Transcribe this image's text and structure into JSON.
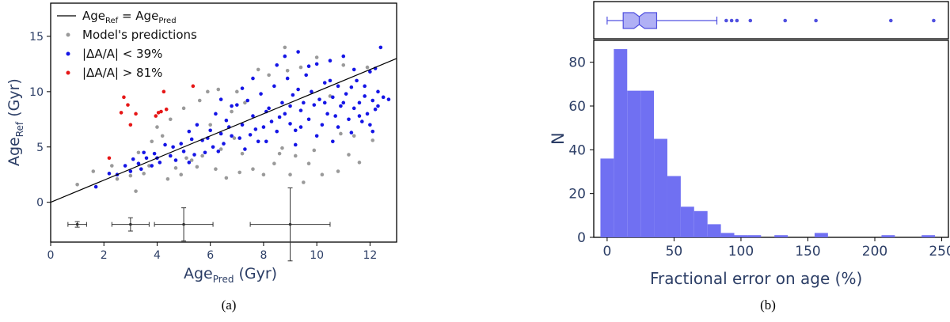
{
  "chart_data": [
    {
      "type": "scatter",
      "caption": "(a)",
      "xlabel_main": "Age",
      "xlabel_sub": "Pred",
      "xlabel_unit": " (Gyr)",
      "ylabel_main": "Age",
      "ylabel_sub": "Ref",
      "ylabel_unit": " (Gyr)",
      "xlim": [
        0,
        13
      ],
      "ylim": [
        -3.6,
        18
      ],
      "xticks": [
        0,
        2,
        4,
        6,
        8,
        10,
        12
      ],
      "yticks": [
        0,
        5,
        10,
        15
      ],
      "legend": {
        "placement": "top-left",
        "line_main": "Age",
        "line_sub1": "Ref",
        "line_eq": " = Age",
        "line_sub2": "Pred",
        "entries": [
          "Model's predictions",
          "|ΔA/A| < 39%",
          "|ΔA/A| > 81%"
        ]
      },
      "colors": {
        "line": "#000000",
        "gray": "#9a9a9a",
        "blue": "#1515e6",
        "red": "#e61717",
        "errorbar": "#333333"
      },
      "line": {
        "x": [
          0,
          13
        ],
        "y": [
          0,
          13
        ]
      },
      "series": [
        {
          "name": "|ΔA/A| > 81%",
          "color": "red",
          "points": [
            [
              2.2,
              4.0
            ],
            [
              2.65,
              8.1
            ],
            [
              2.75,
              9.5
            ],
            [
              2.9,
              8.8
            ],
            [
              3.0,
              7.0
            ],
            [
              3.2,
              8.0
            ],
            [
              3.95,
              7.8
            ],
            [
              4.05,
              8.1
            ],
            [
              4.15,
              8.2
            ],
            [
              4.25,
              10.0
            ],
            [
              4.35,
              8.4
            ],
            [
              5.35,
              10.5
            ]
          ]
        }
      ],
      "gray_points": [
        [
          1.0,
          1.6
        ],
        [
          1.6,
          2.8
        ],
        [
          2.3,
          3.3
        ],
        [
          2.5,
          2.1
        ],
        [
          3.2,
          1.0
        ],
        [
          3.3,
          4.5
        ],
        [
          3.5,
          2.6
        ],
        [
          3.7,
          3.3
        ],
        [
          3.8,
          5.5
        ],
        [
          4.0,
          6.8
        ],
        [
          4.2,
          6.0
        ],
        [
          4.4,
          2.1
        ],
        [
          4.7,
          3.1
        ],
        [
          4.9,
          2.5
        ],
        [
          5.0,
          8.5
        ],
        [
          5.1,
          4.0
        ],
        [
          5.3,
          3.8
        ],
        [
          5.6,
          9.2
        ],
        [
          5.7,
          4.2
        ],
        [
          5.9,
          10.0
        ],
        [
          6.0,
          7.0
        ],
        [
          6.2,
          3.0
        ],
        [
          6.4,
          4.8
        ],
        [
          6.6,
          2.2
        ],
        [
          6.8,
          8.2
        ],
        [
          7.0,
          10.0
        ],
        [
          7.2,
          4.4
        ],
        [
          7.3,
          9.0
        ],
        [
          7.6,
          3.0
        ],
        [
          7.8,
          12.0
        ],
        [
          8.0,
          2.5
        ],
        [
          8.2,
          11.5
        ],
        [
          8.4,
          3.5
        ],
        [
          8.6,
          4.4
        ],
        [
          8.8,
          14.0
        ],
        [
          9.0,
          2.5
        ],
        [
          9.2,
          4.2
        ],
        [
          9.4,
          12.2
        ],
        [
          9.5,
          1.8
        ],
        [
          9.7,
          3.5
        ],
        [
          10.0,
          13.1
        ],
        [
          10.2,
          2.5
        ],
        [
          10.5,
          9.6
        ],
        [
          10.8,
          2.8
        ],
        [
          11.0,
          12.4
        ],
        [
          11.2,
          4.3
        ],
        [
          11.4,
          6.0
        ],
        [
          11.6,
          3.6
        ],
        [
          11.9,
          12.2
        ],
        [
          12.1,
          5.6
        ],
        [
          5.5,
          3.2
        ],
        [
          6.9,
          5.8
        ],
        [
          8.7,
          4.9
        ],
        [
          9.9,
          4.7
        ],
        [
          10.9,
          6.2
        ],
        [
          7.1,
          2.7
        ],
        [
          3.0,
          2.4
        ],
        [
          4.5,
          7.5
        ],
        [
          6.3,
          10.2
        ],
        [
          8.9,
          11.9
        ]
      ],
      "blue_points": [
        [
          1.7,
          1.4
        ],
        [
          2.2,
          2.6
        ],
        [
          2.5,
          2.5
        ],
        [
          2.8,
          3.3
        ],
        [
          3.0,
          2.8
        ],
        [
          3.3,
          3.5
        ],
        [
          3.4,
          3.0
        ],
        [
          3.6,
          4.0
        ],
        [
          3.8,
          3.3
        ],
        [
          3.9,
          4.4
        ],
        [
          4.1,
          3.6
        ],
        [
          4.3,
          5.2
        ],
        [
          4.5,
          4.2
        ],
        [
          4.7,
          3.8
        ],
        [
          4.9,
          5.3
        ],
        [
          5.0,
          4.6
        ],
        [
          5.2,
          6.4
        ],
        [
          5.4,
          4.3
        ],
        [
          5.5,
          7.0
        ],
        [
          5.7,
          5.6
        ],
        [
          5.8,
          4.5
        ],
        [
          6.0,
          6.5
        ],
        [
          6.1,
          5.0
        ],
        [
          6.2,
          8.0
        ],
        [
          6.4,
          6.2
        ],
        [
          6.5,
          5.3
        ],
        [
          6.6,
          7.4
        ],
        [
          6.8,
          6.0
        ],
        [
          7.0,
          8.8
        ],
        [
          7.1,
          5.8
        ],
        [
          7.2,
          7.0
        ],
        [
          7.4,
          9.2
        ],
        [
          7.5,
          6.1
        ],
        [
          7.6,
          7.8
        ],
        [
          7.8,
          5.5
        ],
        [
          7.9,
          9.8
        ],
        [
          8.0,
          6.8
        ],
        [
          8.2,
          8.5
        ],
        [
          8.3,
          7.3
        ],
        [
          8.4,
          10.5
        ],
        [
          8.5,
          6.4
        ],
        [
          8.7,
          9.0
        ],
        [
          8.8,
          8.0
        ],
        [
          8.9,
          11.2
        ],
        [
          9.0,
          7.1
        ],
        [
          9.1,
          9.7
        ],
        [
          9.2,
          6.5
        ],
        [
          9.3,
          10.2
        ],
        [
          9.4,
          8.3
        ],
        [
          9.5,
          9.0
        ],
        [
          9.6,
          11.5
        ],
        [
          9.7,
          7.5
        ],
        [
          9.8,
          10.0
        ],
        [
          9.9,
          8.8
        ],
        [
          10.0,
          12.5
        ],
        [
          10.1,
          9.3
        ],
        [
          10.2,
          7.0
        ],
        [
          10.3,
          10.8
        ],
        [
          10.4,
          8.0
        ],
        [
          10.5,
          11.0
        ],
        [
          10.6,
          9.5
        ],
        [
          10.7,
          7.8
        ],
        [
          10.8,
          10.5
        ],
        [
          10.9,
          8.7
        ],
        [
          11.0,
          13.2
        ],
        [
          11.1,
          9.8
        ],
        [
          11.2,
          7.5
        ],
        [
          11.3,
          10.4
        ],
        [
          11.4,
          8.5
        ],
        [
          11.5,
          11.0
        ],
        [
          11.6,
          9.0
        ],
        [
          11.7,
          7.3
        ],
        [
          11.8,
          10.5
        ],
        [
          11.9,
          8.0
        ],
        [
          12.0,
          11.8
        ],
        [
          12.1,
          9.2
        ],
        [
          12.2,
          8.4
        ],
        [
          12.3,
          10.0
        ],
        [
          12.4,
          14.0
        ],
        [
          12.5,
          9.5
        ],
        [
          12.7,
          9.3
        ],
        [
          5.2,
          3.6
        ],
        [
          6.8,
          8.7
        ],
        [
          7.3,
          4.8
        ],
        [
          8.1,
          5.5
        ],
        [
          9.2,
          5.2
        ],
        [
          10.0,
          6.0
        ],
        [
          10.6,
          5.5
        ],
        [
          11.3,
          6.3
        ],
        [
          12.0,
          7.0
        ],
        [
          4.0,
          4.0
        ],
        [
          4.6,
          5.0
        ],
        [
          5.9,
          5.8
        ],
        [
          6.3,
          4.6
        ],
        [
          7.7,
          6.6
        ],
        [
          8.6,
          7.7
        ],
        [
          9.4,
          6.8
        ],
        [
          10.8,
          6.8
        ],
        [
          11.6,
          7.8
        ],
        [
          12.1,
          6.4
        ],
        [
          3.1,
          3.9
        ],
        [
          3.5,
          4.5
        ],
        [
          5.3,
          5.7
        ],
        [
          6.7,
          6.8
        ],
        [
          8.1,
          8.2
        ],
        [
          9.0,
          8.7
        ],
        [
          10.3,
          9.0
        ],
        [
          11.0,
          9.0
        ],
        [
          11.8,
          9.6
        ],
        [
          12.3,
          8.7
        ],
        [
          7.6,
          11.2
        ],
        [
          8.5,
          12.4
        ],
        [
          9.7,
          12.3
        ],
        [
          10.5,
          12.8
        ],
        [
          11.4,
          12.0
        ],
        [
          12.2,
          12.1
        ],
        [
          6.4,
          9.3
        ],
        [
          7.2,
          10.3
        ],
        [
          8.8,
          13.2
        ],
        [
          9.3,
          13.6
        ]
      ],
      "errorbars": [
        {
          "x": 1.0,
          "y": -2.0,
          "xerr": 0.35,
          "yerr": 0.25
        },
        {
          "x": 3.0,
          "y": -2.0,
          "xerr": 0.7,
          "yerr": 0.6
        },
        {
          "x": 5.0,
          "y": -2.0,
          "xerr": 1.1,
          "yerr": 1.5
        },
        {
          "x": 9.0,
          "y": -2.0,
          "xerr": 1.5,
          "yerr": 3.3
        }
      ]
    },
    {
      "type": "bar",
      "caption": "(b)",
      "xlabel": "Fractional error on age (%)",
      "ylabel": "N",
      "xlim": [
        -10,
        255
      ],
      "ylim": [
        0,
        90
      ],
      "xticks": [
        0,
        50,
        100,
        150,
        200,
        250
      ],
      "yticks": [
        0,
        20,
        40,
        60,
        80
      ],
      "bar_color": "#7070f2",
      "bin_edges": [
        -5,
        5,
        15,
        25,
        35,
        45,
        55,
        65,
        75,
        85,
        95,
        105,
        115,
        125,
        135,
        145,
        155,
        165,
        175,
        185,
        195,
        205,
        215,
        225,
        235,
        245
      ],
      "counts": [
        36,
        86,
        67,
        67,
        45,
        28,
        14,
        12,
        6,
        2,
        1,
        1,
        0,
        1,
        0,
        0,
        2,
        0,
        0,
        0,
        0,
        1,
        0,
        0,
        1
      ],
      "boxplot": {
        "whisker_low": 0,
        "q1": 12,
        "median": 24,
        "q3": 37,
        "whisker_high": 82,
        "notch_low": 20,
        "notch_high": 28,
        "outliers": [
          89,
          93,
          97,
          107,
          133,
          156,
          212,
          244
        ]
      }
    }
  ]
}
